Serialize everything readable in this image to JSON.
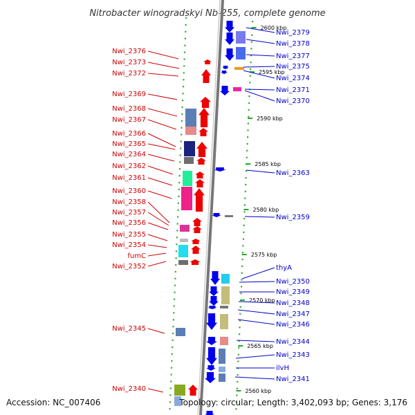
{
  "title": "Nitrobacter winogradskyi Nb-255, complete genome",
  "footer": {
    "accession": "Accession: NC_007406",
    "topology": "Topology: circular; Length: 3,402,093 bp; Genes: 3,176"
  },
  "colors": {
    "forward": "#ee0000",
    "reverse": "#0000ee",
    "left_label": "#cc0000",
    "right_label": "#0000cc",
    "backbone": "#888888",
    "dots": "#33aa33"
  },
  "scale_labels": [
    "2600 kbp",
    "2595 kbp",
    "2590 kbp",
    "2585 kbp",
    "2580 kbp",
    "2575 kbp",
    "2570 kbp",
    "2565 kbp",
    "2560 kbp"
  ],
  "left_genes": [
    "Nwi_2376",
    "Nwi_2373",
    "Nwi_2372",
    "Nwi_2369",
    "Nwi_2368",
    "Nwi_2367",
    "Nwi_2366",
    "Nwi_2365",
    "Nwi_2364",
    "Nwi_2362",
    "Nwi_2361",
    "Nwi_2360",
    "Nwi_2358",
    "Nwi_2357",
    "Nwi_2356",
    "Nwi_2355",
    "Nwi_2354",
    "fumC",
    "Nwi_2352",
    "Nwi_2345",
    "Nwi_2340"
  ],
  "right_genes": [
    "Nwi_2379",
    "Nwi_2378",
    "Nwi_2377",
    "Nwi_2375",
    "Nwi_2374",
    "Nwi_2371",
    "Nwi_2370",
    "Nwi_2363",
    "Nwi_2359",
    "thyA",
    "Nwi_2350",
    "Nwi_2349",
    "Nwi_2348",
    "Nwi_2347",
    "Nwi_2346",
    "Nwi_2344",
    "Nwi_2343",
    "ilvH",
    "Nwi_2341"
  ]
}
